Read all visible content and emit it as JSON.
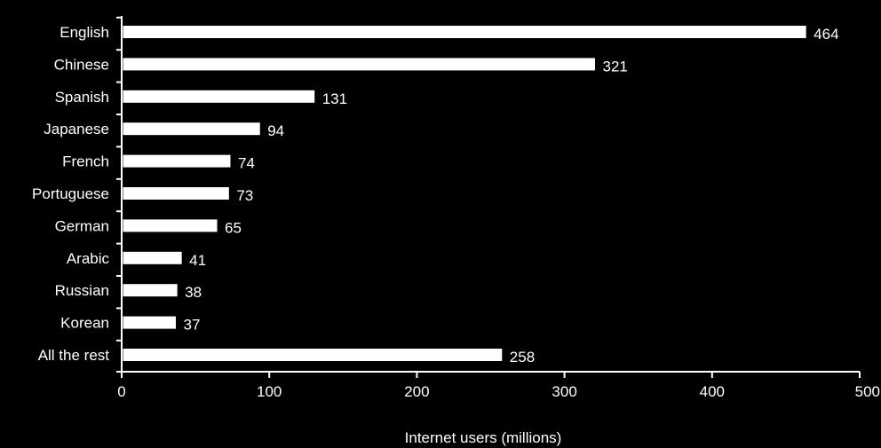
{
  "chart_data": {
    "type": "bar",
    "orientation": "horizontal",
    "categories": [
      "English",
      "Chinese",
      "Spanish",
      "Japanese",
      "French",
      "Portuguese",
      "German",
      "Arabic",
      "Russian",
      "Korean",
      "All the rest"
    ],
    "values": [
      464,
      321,
      131,
      94,
      74,
      73,
      65,
      41,
      38,
      37,
      258
    ],
    "data_labels": [
      "464",
      "321",
      "131",
      "94",
      "74",
      "73",
      "65",
      "41",
      "38",
      "37",
      "258"
    ],
    "x_ticks": [
      "0",
      "100",
      "200",
      "300",
      "400",
      "500"
    ],
    "xlim": [
      0,
      500
    ],
    "title": "",
    "xlabel": "Internet users (millions)",
    "ylabel": "",
    "grid": false,
    "legend": "none",
    "colors": {
      "background": "#000000",
      "bar_fill": "#ffffff",
      "bar_stroke": "#000000",
      "text": "#ffffff",
      "axis": "#ffffff"
    }
  }
}
